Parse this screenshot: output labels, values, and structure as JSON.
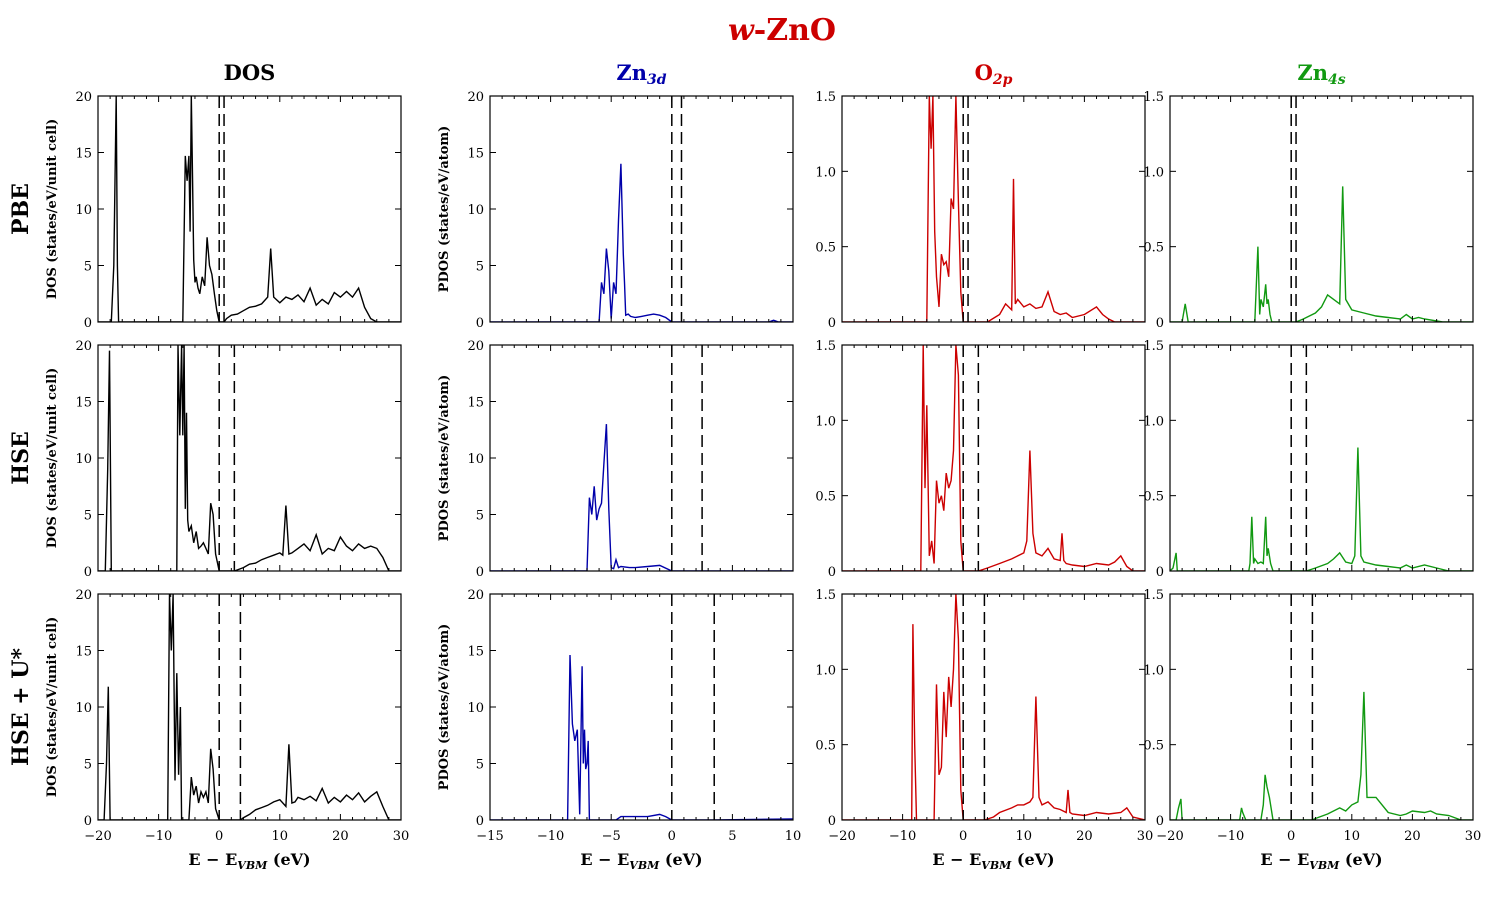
{
  "figure": {
    "title_prefix": "w",
    "title_suffix": "-ZnO",
    "title_color": "#cc0000",
    "columns": [
      {
        "key": "dos",
        "base": "DOS",
        "sub": "",
        "color": "#000000"
      },
      {
        "key": "zn3d",
        "base": "Zn",
        "sub": "3d",
        "color": "#0000aa"
      },
      {
        "key": "o2p",
        "base": "O",
        "sub": "2p",
        "color": "#cc0000"
      },
      {
        "key": "zn4s",
        "base": "Zn",
        "sub": "4s",
        "color": "#119911"
      }
    ],
    "rows": [
      {
        "key": "pbe",
        "label": "PBE"
      },
      {
        "key": "hse",
        "label": "HSE"
      },
      {
        "key": "hseu",
        "label": "HSE + U*"
      }
    ],
    "ylabels": {
      "dos": "DOS (states/eV/unit cell)",
      "zn3d": "PDOS (states/eV/atom)"
    },
    "xlabel_parts": [
      "E − E",
      "VBM",
      " (eV)"
    ]
  },
  "chart_data": [
    {
      "type": "line",
      "column": "DOS",
      "row": "PBE",
      "color": "#000000",
      "xlim": [
        -20,
        30
      ],
      "ylim": [
        0,
        20
      ],
      "xticks": [
        -20,
        -10,
        0,
        10,
        20,
        30
      ],
      "yticks": [
        0,
        5,
        10,
        15,
        20
      ],
      "vlines_dashed": [
        0,
        0.8
      ],
      "x": [
        -20,
        -17.8,
        -17.4,
        -17.2,
        -17.0,
        -16.8,
        -16.6,
        -6.0,
        -5.6,
        -5.3,
        -5.0,
        -4.8,
        -4.6,
        -4.4,
        -4.2,
        -4.0,
        -3.8,
        -3.5,
        -3.2,
        -2.8,
        -2.4,
        -2.0,
        -1.6,
        -1.2,
        -0.8,
        -0.4,
        0,
        0.8,
        1.2,
        2,
        3,
        4,
        5,
        6,
        7,
        8,
        8.5,
        9,
        10,
        11,
        12,
        13,
        14,
        15,
        16,
        17,
        18,
        19,
        20,
        21,
        22,
        23,
        24,
        25,
        26,
        28,
        30
      ],
      "y": [
        0,
        0,
        5,
        12.5,
        20,
        5,
        0,
        0,
        14.7,
        12.5,
        14.7,
        8,
        20,
        13,
        5.5,
        3.5,
        4,
        3,
        2.5,
        4,
        3.2,
        7.5,
        5,
        4.2,
        2.5,
        1,
        0,
        0,
        0.3,
        0.6,
        0.7,
        1.0,
        1.3,
        1.4,
        1.6,
        2.2,
        6.5,
        2.2,
        1.7,
        2.2,
        2.0,
        2.4,
        1.8,
        3.0,
        1.5,
        2.0,
        1.6,
        2.6,
        2.2,
        2.7,
        2.2,
        3.0,
        1.3,
        0.3,
        0,
        0,
        0
      ]
    },
    {
      "type": "line",
      "column": "Zn3d",
      "row": "PBE",
      "color": "#0000aa",
      "xlim": [
        -15,
        10
      ],
      "ylim": [
        0,
        20
      ],
      "xticks": [
        -15,
        -10,
        -5,
        0,
        5,
        10
      ],
      "yticks": [
        0,
        5,
        10,
        15,
        20
      ],
      "vlines_dashed": [
        0,
        0.8
      ],
      "x": [
        -15,
        -6.0,
        -5.8,
        -5.6,
        -5.4,
        -5.2,
        -5.0,
        -4.8,
        -4.6,
        -4.4,
        -4.2,
        -4.0,
        -3.9,
        -3.8,
        -3.6,
        -3.4,
        -3.0,
        -2.5,
        -2,
        -1.5,
        -1,
        -0.5,
        0,
        0.8,
        8,
        8.4,
        8.8,
        10
      ],
      "y": [
        0,
        0,
        3.5,
        2.5,
        6.5,
        4.5,
        0.3,
        3.5,
        2.5,
        9,
        14,
        6,
        3.5,
        0.6,
        0.7,
        0.5,
        0.4,
        0.5,
        0.6,
        0.7,
        0.6,
        0.4,
        0,
        0,
        0,
        0.15,
        0,
        0
      ]
    },
    {
      "type": "line",
      "column": "O2p",
      "row": "PBE",
      "color": "#cc0000",
      "xlim": [
        -20,
        30
      ],
      "ylim": [
        0,
        1.5
      ],
      "xticks": [
        -20,
        -10,
        0,
        10,
        20,
        30
      ],
      "yticks": [
        0,
        0.5,
        1.0,
        1.5
      ],
      "vlines_dashed": [
        0,
        0.8
      ],
      "x": [
        -20,
        -6.0,
        -5.6,
        -5.3,
        -5.0,
        -4.7,
        -4.4,
        -4.0,
        -3.6,
        -3.2,
        -2.8,
        -2.4,
        -2.0,
        -1.6,
        -1.2,
        -0.8,
        -0.4,
        0,
        0.8,
        2,
        4,
        6,
        7,
        8,
        8.3,
        8.6,
        9,
        10,
        11,
        12,
        13,
        14,
        15,
        16,
        17,
        18,
        20,
        22,
        23,
        24,
        25,
        30
      ],
      "y": [
        0,
        0,
        1.5,
        1.15,
        1.5,
        0.6,
        0.3,
        0.1,
        0.45,
        0.38,
        0.4,
        0.3,
        0.82,
        0.75,
        1.5,
        0.8,
        0.2,
        0,
        0,
        0,
        0,
        0.05,
        0.12,
        0.08,
        0.95,
        0.12,
        0.15,
        0.1,
        0.12,
        0.09,
        0.1,
        0.2,
        0.07,
        0.05,
        0.06,
        0.03,
        0.05,
        0.1,
        0.05,
        0.02,
        0,
        0
      ]
    },
    {
      "type": "line",
      "column": "Zn4s",
      "row": "PBE",
      "color": "#119911",
      "xlim": [
        -20,
        30
      ],
      "ylim": [
        0,
        1.5
      ],
      "xticks": [
        -20,
        -10,
        0,
        10,
        20,
        30
      ],
      "yticks": [
        0,
        0.5,
        1.0,
        1.5
      ],
      "vlines_dashed": [
        0,
        0.8
      ],
      "x": [
        -20,
        -18,
        -17.5,
        -17,
        -6,
        -5.5,
        -5.2,
        -5,
        -4.6,
        -4.2,
        -4,
        -3.8,
        -3.5,
        -3.2,
        0,
        0.8,
        2,
        4,
        5,
        6,
        8,
        8.5,
        9,
        10,
        12,
        14,
        16,
        18,
        19,
        20,
        21,
        22,
        25,
        30
      ],
      "y": [
        0,
        0,
        0.12,
        0,
        0,
        0.5,
        0.05,
        0.15,
        0.1,
        0.25,
        0.12,
        0.15,
        0.05,
        0,
        0,
        0,
        0.02,
        0.06,
        0.1,
        0.18,
        0.12,
        0.9,
        0.15,
        0.08,
        0.06,
        0.04,
        0.03,
        0.02,
        0.05,
        0.02,
        0.03,
        0.02,
        0,
        0
      ]
    },
    {
      "type": "line",
      "column": "DOS",
      "row": "HSE",
      "color": "#000000",
      "xlim": [
        -20,
        30
      ],
      "ylim": [
        0,
        20
      ],
      "xticks": [
        -20,
        -10,
        0,
        10,
        20,
        30
      ],
      "yticks": [
        0,
        5,
        10,
        15,
        20
      ],
      "vlines_dashed": [
        0,
        2.5
      ],
      "x": [
        -20,
        -18.8,
        -18.4,
        -18.1,
        -17.8,
        -7,
        -6.8,
        -6.5,
        -6.2,
        -6.0,
        -5.8,
        -5.6,
        -5.4,
        -5.2,
        -5.0,
        -4.6,
        -4.2,
        -3.8,
        -3.4,
        -3.0,
        -2.6,
        -2.2,
        -1.8,
        -1.4,
        -1.0,
        -0.6,
        0,
        2.5,
        3,
        4,
        5,
        6,
        7,
        8,
        9,
        10,
        10.5,
        11,
        11.5,
        12,
        13,
        14,
        15,
        16,
        17,
        18,
        19,
        20,
        21,
        22,
        23,
        24,
        25,
        26,
        27,
        28,
        30
      ],
      "y": [
        0,
        0,
        9,
        19.5,
        0,
        0,
        20,
        12,
        20,
        12,
        20,
        5.5,
        14,
        4.5,
        3.5,
        4,
        2.5,
        3.5,
        2.0,
        2.2,
        2.5,
        2.0,
        1.5,
        6.0,
        5.0,
        1.5,
        0,
        0,
        0.1,
        0.3,
        0.6,
        0.7,
        1.0,
        1.2,
        1.4,
        1.6,
        1.4,
        5.8,
        1.5,
        1.6,
        2.0,
        2.4,
        1.8,
        3.2,
        1.5,
        2.0,
        1.8,
        3.0,
        2.2,
        1.8,
        2.4,
        2.0,
        2.2,
        2.0,
        1.2,
        0,
        0
      ]
    },
    {
      "type": "line",
      "column": "Zn3d",
      "row": "HSE",
      "color": "#0000aa",
      "xlim": [
        -15,
        10
      ],
      "ylim": [
        0,
        20
      ],
      "xticks": [
        -15,
        -10,
        -5,
        0,
        5,
        10
      ],
      "yticks": [
        0,
        5,
        10,
        15,
        20
      ],
      "vlines_dashed": [
        0,
        2.5
      ],
      "x": [
        -15,
        -7.0,
        -6.8,
        -6.6,
        -6.4,
        -6.2,
        -6.0,
        -5.8,
        -5.6,
        -5.4,
        -5.2,
        -5.0,
        -4.8,
        -4.6,
        -4.4,
        -4.2,
        -3.5,
        -3,
        -2,
        -1,
        0,
        2.5,
        10
      ],
      "y": [
        0,
        0,
        6.5,
        5,
        7.5,
        4.5,
        5.5,
        6,
        9.5,
        13,
        5.5,
        0.3,
        0.2,
        1.0,
        0.3,
        0.4,
        0.3,
        0.3,
        0.4,
        0.5,
        0,
        0,
        0
      ]
    },
    {
      "type": "line",
      "column": "O2p",
      "row": "HSE",
      "color": "#cc0000",
      "xlim": [
        -20,
        30
      ],
      "ylim": [
        0,
        1.5
      ],
      "xticks": [
        -20,
        -10,
        0,
        10,
        20,
        30
      ],
      "yticks": [
        0,
        0.5,
        1.0,
        1.5
      ],
      "vlines_dashed": [
        0,
        2.5
      ],
      "x": [
        -20,
        -7.0,
        -6.6,
        -6.3,
        -6.0,
        -5.6,
        -5.2,
        -4.8,
        -4.4,
        -4.0,
        -3.6,
        -3.2,
        -2.8,
        -2.4,
        -2.0,
        -1.6,
        -1.2,
        -0.8,
        -0.4,
        0,
        2.5,
        4,
        6,
        8,
        9,
        10,
        10.5,
        11,
        11.5,
        12,
        13,
        14,
        15,
        16,
        16.3,
        16.6,
        17,
        18,
        20,
        22,
        24,
        25,
        26,
        27,
        28,
        30
      ],
      "y": [
        0,
        0,
        1.5,
        0.55,
        1.1,
        0.1,
        0.2,
        0.05,
        0.6,
        0.45,
        0.5,
        0.4,
        0.65,
        0.55,
        0.6,
        0.8,
        1.5,
        1.3,
        0.2,
        0,
        0,
        0.02,
        0.05,
        0.08,
        0.1,
        0.12,
        0.2,
        0.8,
        0.25,
        0.12,
        0.1,
        0.15,
        0.08,
        0.07,
        0.25,
        0.07,
        0.05,
        0.04,
        0.03,
        0.05,
        0.04,
        0.06,
        0.1,
        0.03,
        0,
        0
      ]
    },
    {
      "type": "line",
      "column": "Zn4s",
      "row": "HSE",
      "color": "#119911",
      "xlim": [
        -20,
        30
      ],
      "ylim": [
        0,
        1.5
      ],
      "xticks": [
        -20,
        -10,
        0,
        10,
        20,
        30
      ],
      "yticks": [
        0,
        0.5,
        1.0,
        1.5
      ],
      "vlines_dashed": [
        0,
        2.5
      ],
      "x": [
        -20,
        -19.5,
        -19,
        -18.8,
        -7,
        -6.8,
        -6.5,
        -6.2,
        -6,
        -5.5,
        -5,
        -4.6,
        -4.2,
        -4,
        -3.8,
        -3.4,
        -3,
        0,
        2.5,
        4,
        6,
        7,
        8,
        9,
        10,
        10.5,
        11,
        11.5,
        12,
        14,
        16,
        18,
        19,
        20,
        22,
        24,
        26,
        30
      ],
      "y": [
        0,
        0.02,
        0.12,
        0,
        0,
        0.05,
        0.36,
        0.05,
        0.08,
        0.05,
        0.06,
        0.05,
        0.36,
        0.1,
        0.15,
        0.05,
        0,
        0,
        0,
        0.02,
        0.05,
        0.08,
        0.12,
        0.06,
        0.05,
        0.1,
        0.82,
        0.1,
        0.06,
        0.04,
        0.03,
        0.02,
        0.04,
        0.02,
        0.04,
        0.02,
        0,
        0
      ]
    },
    {
      "type": "line",
      "column": "DOS",
      "row": "HSE + U*",
      "color": "#000000",
      "xlim": [
        -20,
        30
      ],
      "ylim": [
        0,
        20
      ],
      "xticks": [
        -20,
        -10,
        0,
        10,
        20,
        30
      ],
      "yticks": [
        0,
        5,
        10,
        15,
        20
      ],
      "vlines_dashed": [
        0,
        3.5
      ],
      "x": [
        -20,
        -19,
        -18.6,
        -18.3,
        -18.0,
        -8.5,
        -8.2,
        -7.9,
        -7.6,
        -7.3,
        -7.0,
        -6.7,
        -6.4,
        -6.2,
        -5.0,
        -4.6,
        -4.2,
        -3.8,
        -3.4,
        -3.0,
        -2.6,
        -2.2,
        -1.8,
        -1.4,
        -1.0,
        -0.6,
        0,
        3.5,
        4,
        5,
        6,
        7,
        8,
        9,
        10,
        11,
        11.5,
        12,
        12.5,
        13,
        14,
        15,
        16,
        17,
        18,
        19,
        20,
        21,
        22,
        23,
        24,
        25,
        26,
        27,
        28,
        30
      ],
      "y": [
        0,
        0,
        5,
        11.8,
        0,
        0,
        20,
        15,
        20,
        3.5,
        13,
        4,
        10,
        0,
        0,
        3.8,
        2.2,
        3.0,
        1.5,
        2.5,
        2.0,
        2.5,
        1.5,
        6.3,
        4.5,
        1.0,
        0,
        0,
        0.2,
        0.5,
        0.9,
        1.1,
        1.3,
        1.6,
        1.8,
        1.2,
        6.7,
        1.5,
        1.6,
        2.0,
        1.8,
        2.1,
        1.7,
        2.8,
        1.5,
        2.0,
        1.6,
        2.2,
        1.8,
        2.4,
        1.6,
        2.1,
        2.5,
        1.2,
        0,
        0
      ]
    },
    {
      "type": "line",
      "column": "Zn3d",
      "row": "HSE + U*",
      "color": "#0000aa",
      "xlim": [
        -15,
        10
      ],
      "ylim": [
        0,
        20
      ],
      "xticks": [
        -15,
        -10,
        -5,
        0,
        5,
        10
      ],
      "yticks": [
        0,
        5,
        10,
        15,
        20
      ],
      "vlines_dashed": [
        0,
        3.5
      ],
      "x": [
        -15,
        -8.6,
        -8.4,
        -8.2,
        -8.0,
        -7.8,
        -7.6,
        -7.4,
        -7.3,
        -7.2,
        -7.1,
        -7.0,
        -6.9,
        -6.8,
        -4.6,
        -4.2,
        -3,
        -2,
        -1,
        -0.5,
        0,
        3.5,
        10
      ],
      "y": [
        0,
        0,
        14.6,
        8.5,
        7,
        8,
        0.5,
        13.6,
        5,
        8,
        4.5,
        5,
        7,
        0,
        0,
        0.3,
        0.3,
        0.3,
        0.5,
        0.3,
        0,
        0,
        0.1
      ]
    },
    {
      "type": "line",
      "column": "O2p",
      "row": "HSE + U*",
      "color": "#cc0000",
      "xlim": [
        -20,
        30
      ],
      "ylim": [
        0,
        1.5
      ],
      "xticks": [
        -20,
        -10,
        0,
        10,
        20,
        30
      ],
      "yticks": [
        0,
        0.5,
        1.0,
        1.5
      ],
      "vlines_dashed": [
        0,
        3.5
      ],
      "x": [
        -20,
        -8.5,
        -8.3,
        -8.0,
        -7.7,
        -4.8,
        -4.4,
        -4.0,
        -3.6,
        -3.2,
        -2.8,
        -2.4,
        -2.0,
        -1.6,
        -1.2,
        -0.8,
        -0.4,
        0,
        3.5,
        5,
        6,
        8,
        9,
        10,
        11,
        11.5,
        12,
        12.5,
        13,
        14,
        15,
        16,
        17,
        17.3,
        17.6,
        18,
        20,
        22,
        24,
        26,
        27,
        28,
        30
      ],
      "y": [
        0,
        0,
        1.3,
        0.5,
        0,
        0,
        0.9,
        0.3,
        0.35,
        0.85,
        0.55,
        0.95,
        0.75,
        1.0,
        1.5,
        1.2,
        0.2,
        0,
        0,
        0.02,
        0.05,
        0.08,
        0.1,
        0.1,
        0.12,
        0.15,
        0.82,
        0.15,
        0.1,
        0.12,
        0.08,
        0.07,
        0.05,
        0.2,
        0.05,
        0.04,
        0.03,
        0.05,
        0.04,
        0.05,
        0.08,
        0.02,
        0
      ]
    },
    {
      "type": "line",
      "column": "Zn4s",
      "row": "HSE + U*",
      "color": "#119911",
      "xlim": [
        -20,
        30
      ],
      "ylim": [
        0,
        1.5
      ],
      "xticks": [
        -20,
        -10,
        0,
        10,
        20,
        30
      ],
      "yticks": [
        0,
        0.5,
        1.0,
        1.5
      ],
      "vlines_dashed": [
        0,
        3.5
      ],
      "x": [
        -20,
        -19,
        -18.6,
        -18.2,
        -18,
        -8.5,
        -8.2,
        -8,
        -7.5,
        -5,
        -4.6,
        -4.3,
        -4,
        -3.6,
        -3,
        0,
        3.5,
        4,
        6,
        8,
        9,
        10,
        11,
        11.5,
        12,
        12.5,
        14,
        16,
        18,
        19,
        20,
        22,
        23,
        24,
        26,
        28,
        30
      ],
      "y": [
        0,
        0,
        0.08,
        0.14,
        0,
        0,
        0.08,
        0.05,
        0,
        0,
        0.1,
        0.3,
        0.22,
        0.15,
        0,
        0,
        0,
        0.01,
        0.04,
        0.08,
        0.06,
        0.1,
        0.12,
        0.3,
        0.85,
        0.15,
        0.15,
        0.05,
        0.03,
        0.04,
        0.06,
        0.05,
        0.06,
        0.04,
        0.03,
        0,
        0
      ]
    }
  ]
}
